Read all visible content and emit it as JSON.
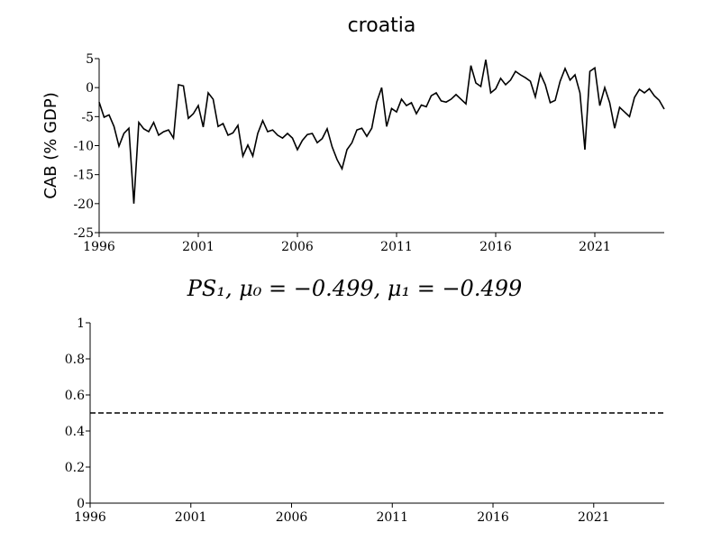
{
  "chart_data": [
    {
      "type": "line",
      "title": "croatia",
      "ylabel": "CAB (% GDP)",
      "x": [
        1996,
        1996.25,
        1996.5,
        1996.75,
        1997,
        1997.25,
        1997.5,
        1997.75,
        1998,
        1998.25,
        1998.5,
        1998.75,
        1999,
        1999.25,
        1999.5,
        1999.75,
        2000,
        2000.25,
        2000.5,
        2000.75,
        2001,
        2001.25,
        2001.5,
        2001.75,
        2002,
        2002.25,
        2002.5,
        2002.75,
        2003,
        2003.25,
        2003.5,
        2003.75,
        2004,
        2004.25,
        2004.5,
        2004.75,
        2005,
        2005.25,
        2005.5,
        2005.75,
        2006,
        2006.25,
        2006.5,
        2006.75,
        2007,
        2007.25,
        2007.5,
        2007.75,
        2008,
        2008.25,
        2008.5,
        2008.75,
        2009,
        2009.25,
        2009.5,
        2009.75,
        2010,
        2010.25,
        2010.5,
        2010.75,
        2011,
        2011.25,
        2011.5,
        2011.75,
        2012,
        2012.25,
        2012.5,
        2012.75,
        2013,
        2013.25,
        2013.5,
        2013.75,
        2014,
        2014.25,
        2014.5,
        2014.75,
        2015,
        2015.25,
        2015.5,
        2015.75,
        2016,
        2016.25,
        2016.5,
        2016.75,
        2017,
        2017.25,
        2017.5,
        2017.75,
        2018,
        2018.25,
        2018.5,
        2018.75,
        2019,
        2019.25,
        2019.5,
        2019.75,
        2020,
        2020.25,
        2020.5,
        2020.75,
        2021,
        2021.25,
        2021.5,
        2021.75,
        2022,
        2022.25,
        2022.5,
        2022.75,
        2023,
        2023.25,
        2023.5,
        2023.75,
        2024,
        2024.25,
        2024.5
      ],
      "series": [
        {
          "color": "#000000",
          "linestyle": "solid",
          "values": [
            -2.5,
            -5.1,
            -4.7,
            -6.7,
            -10.1,
            -7.9,
            -7,
            -20,
            -6,
            -7.1,
            -7.6,
            -6,
            -8.2,
            -7.6,
            -7.3,
            -8.7,
            0.5,
            0.3,
            -5.3,
            -4.5,
            -3.1,
            -6.8,
            -0.9,
            -2,
            -6.7,
            -6.2,
            -8.2,
            -7.8,
            -6.5,
            -11.8,
            -9.9,
            -11.8,
            -7.9,
            -5.7,
            -7.6,
            -7.3,
            -8.2,
            -8.7,
            -7.9,
            -8.7,
            -10.7,
            -9.1,
            -8.1,
            -7.9,
            -9.5,
            -8.8,
            -7.1,
            -10.2,
            -12.4,
            -14,
            -10.7,
            -9.5,
            -7.3,
            -7,
            -8.4,
            -7,
            -2.5,
            0,
            -6.7,
            -3.6,
            -4.2,
            -2,
            -3.1,
            -2.6,
            -4.5,
            -3,
            -3.3,
            -1.4,
            -0.9,
            -2.3,
            -2.5,
            -2,
            -1.2,
            -2,
            -2.8,
            3.8,
            0.8,
            0.2,
            4.8,
            -0.9,
            -0.2,
            1.6,
            0.5,
            1.3,
            2.8,
            2.2,
            1.7,
            1.1,
            -1.6,
            2.4,
            0.5,
            -2.6,
            -2.2,
            1.1,
            3.3,
            1.3,
            2.2,
            -0.9,
            -10.7,
            2.8,
            3.4,
            -3.1,
            0,
            -2.6,
            -7,
            -3.4,
            -4.2,
            -5,
            -1.7,
            -0.3,
            -0.9,
            -0.2,
            -1.4,
            -2.2,
            -3.7
          ]
        }
      ],
      "xlim": [
        1996,
        2024.5
      ],
      "xticks": [
        1996,
        2001,
        2006,
        2011,
        2016,
        2021
      ],
      "ylim": [
        -25,
        5
      ],
      "yticks": [
        -25,
        -20,
        -15,
        -10,
        -5,
        0,
        5
      ]
    },
    {
      "type": "line",
      "title": "PS₁, μ₀ = −0.499, μ₁ = −0.499",
      "x": [
        1996,
        2024.5
      ],
      "series": [
        {
          "color": "#000000",
          "linestyle": "dashed",
          "values": [
            0.5,
            0.5
          ]
        }
      ],
      "xlim": [
        1996,
        2024.5
      ],
      "xticks": [
        1996,
        2001,
        2006,
        2011,
        2016,
        2021
      ],
      "ylim": [
        0,
        1
      ],
      "yticks": [
        0,
        0.2,
        0.4,
        0.6,
        0.8,
        1
      ]
    }
  ]
}
